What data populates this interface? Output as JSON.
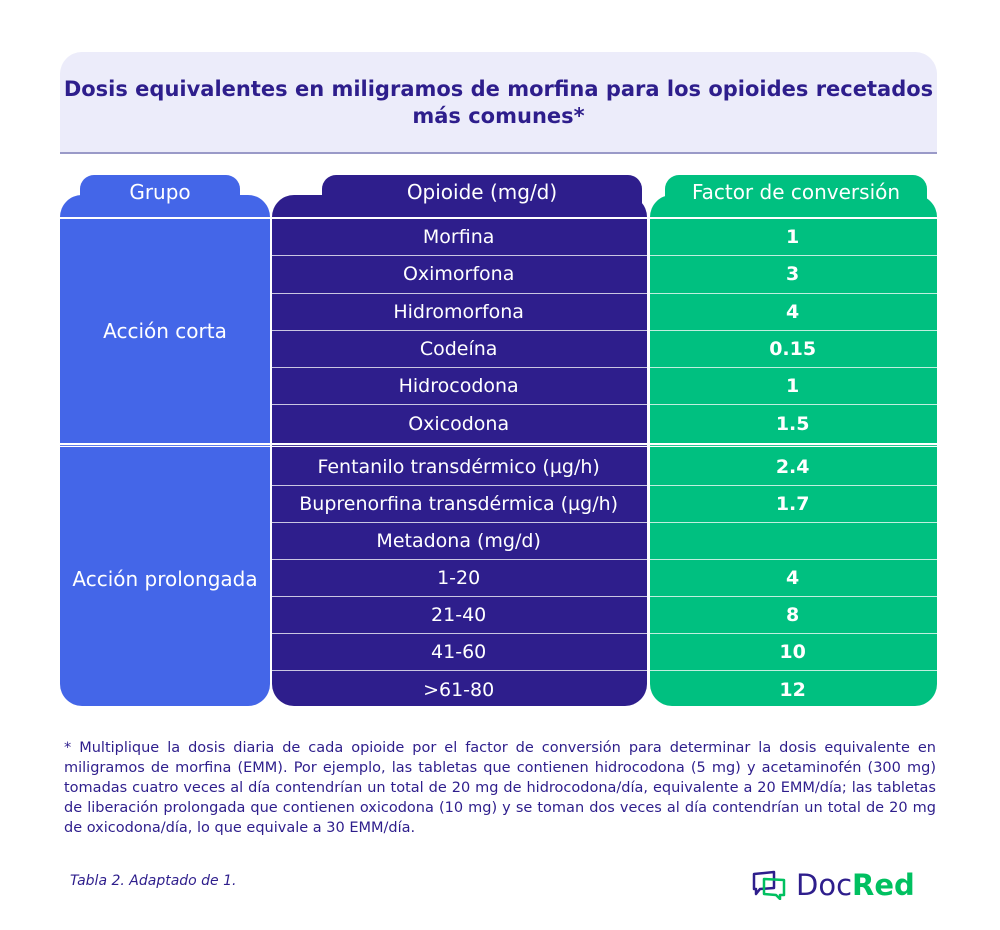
{
  "title": "Dosis equivalentes en miligramos de morfina para los opioides recetados más comunes*",
  "headers": {
    "group": "Grupo",
    "opioid": "Opioide (mg/d)",
    "factor": "Factor de conversión"
  },
  "groups": [
    {
      "label": "Acción corta",
      "rows": [
        {
          "opioid": "Morfina",
          "factor": "1"
        },
        {
          "opioid": "Oximorfona",
          "factor": "3"
        },
        {
          "opioid": "Hidromorfona",
          "factor": "4"
        },
        {
          "opioid": "Codeína",
          "factor": "0.15"
        },
        {
          "opioid": "Hidrocodona",
          "factor": "1"
        },
        {
          "opioid": "Oxicodona",
          "factor": "1.5"
        }
      ]
    },
    {
      "label": "Acción prolongada",
      "rows": [
        {
          "opioid": "Fentanilo transdérmico (µg/h)",
          "factor": "2.4"
        },
        {
          "opioid": "Buprenorfina transdérmica (µg/h)",
          "factor": "1.7"
        },
        {
          "opioid": "Metadona (mg/d)",
          "factor": ""
        },
        {
          "opioid": "1-20",
          "factor": "4"
        },
        {
          "opioid": "21-40",
          "factor": "8"
        },
        {
          "opioid": "41-60",
          "factor": "10"
        },
        {
          "opioid": ">61-80",
          "factor": "12"
        }
      ]
    }
  ],
  "footnote": "* Multiplique la dosis diaria de cada opioide por el factor de conversión para determinar la dosis equivalente en miligramos de morfina (EMM). Por ejemplo, las tabletas que contienen hidrocodona (5 mg) y acetaminofén (300 mg) tomadas cuatro veces al día contendrían un total de 20 mg de hidrocodona/día, equivalente a 20 EMM/día; las tabletas de liberación prolongada que contienen oxicodona (10 mg) y se toman dos veces al día contendrían un total de 20 mg de oxicodona/día, lo que equivale a 30 EMM/día.",
  "source": "Tabla 2. Adaptado de 1.",
  "logo": {
    "part1": "Doc",
    "part2": "Red"
  },
  "colors": {
    "group": "#4466e8",
    "opioid": "#2e1e8c",
    "factor": "#00c080"
  }
}
